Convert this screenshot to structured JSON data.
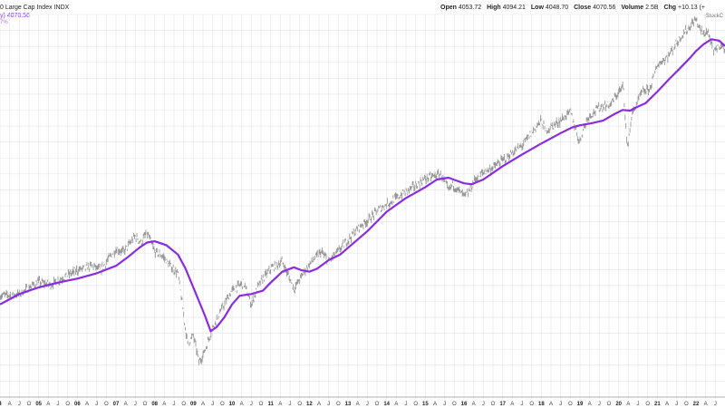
{
  "header": {
    "title": "0 Large Cap Index",
    "exchange": "INDX",
    "open_label": "Open",
    "open": "4053.72",
    "high_label": "High",
    "high": "4094.21",
    "low_label": "Low",
    "low": "4048.70",
    "close_label": "Close",
    "close": "4070.56",
    "volume_label": "Volume",
    "volume": "2.5B",
    "chg_label": "Chg",
    "chg": "+10.13 (+"
  },
  "ma_legend": {
    "line1": "y) 4070.56",
    "line2": "7%"
  },
  "brand": "StockC",
  "colors": {
    "price": "#8c8c8c",
    "ma": "#8a2be2",
    "grid": "#e3e3e3",
    "background": "#ffffff"
  },
  "chart_data": {
    "type": "line",
    "title": "",
    "xlabel": "",
    "ylabel": "",
    "grid": true,
    "x_axis_ticks": [
      "4",
      "A",
      "J",
      "O",
      "05",
      "A",
      "J",
      "O",
      "06",
      "A",
      "J",
      "O",
      "07",
      "A",
      "J",
      "O",
      "08",
      "A",
      "J",
      "O",
      "09",
      "A",
      "J",
      "O",
      "10",
      "A",
      "J",
      "O",
      "11",
      "A",
      "J",
      "O",
      "12",
      "A",
      "J",
      "O",
      "13",
      "A",
      "J",
      "O",
      "14",
      "A",
      "J",
      "O",
      "15",
      "A",
      "J",
      "O",
      "16",
      "A",
      "J",
      "O",
      "17",
      "A",
      "J",
      "O",
      "18",
      "A",
      "J",
      "O",
      "19",
      "A",
      "J",
      "O",
      "20",
      "A",
      "J",
      "O",
      "21",
      "A",
      "J",
      "O",
      "22",
      "A",
      "J"
    ],
    "x_range": [
      2004.0,
      2022.75
    ],
    "ylim": [
      650,
      4900
    ],
    "series": [
      {
        "role": "price",
        "x": [
          2004.0,
          2004.5,
          2005.0,
          2005.3,
          2005.7,
          2006.0,
          2006.4,
          2006.6,
          2007.0,
          2007.2,
          2007.5,
          2007.65,
          2007.8,
          2008.0,
          2008.2,
          2008.4,
          2008.6,
          2008.75,
          2008.85,
          2009.0,
          2009.15,
          2009.3,
          2009.5,
          2009.8,
          2010.0,
          2010.3,
          2010.5,
          2010.7,
          2011.0,
          2011.3,
          2011.6,
          2011.8,
          2012.0,
          2012.3,
          2012.5,
          2012.8,
          2013.0,
          2013.3,
          2013.5,
          2013.8,
          2014.0,
          2014.3,
          2014.6,
          2014.8,
          2015.0,
          2015.4,
          2015.6,
          2015.7,
          2016.0,
          2016.1,
          2016.3,
          2016.5,
          2016.8,
          2017.0,
          2017.5,
          2018.0,
          2018.1,
          2018.5,
          2018.75,
          2018.98,
          2019.2,
          2019.5,
          2019.8,
          2020.0,
          2020.12,
          2020.22,
          2020.35,
          2020.6,
          2020.8,
          2021.0,
          2021.3,
          2021.6,
          2021.8,
          2021.99,
          2022.1,
          2022.2,
          2022.3,
          2022.45,
          2022.6,
          2022.75
        ],
        "y": [
          1110,
          1120,
          1195,
          1175,
          1230,
          1270,
          1300,
          1270,
          1420,
          1400,
          1520,
          1470,
          1550,
          1400,
          1370,
          1300,
          1250,
          1000,
          860,
          900,
          780,
          830,
          940,
          1060,
          1140,
          1190,
          1060,
          1180,
          1280,
          1330,
          1150,
          1230,
          1310,
          1400,
          1330,
          1420,
          1490,
          1600,
          1650,
          1750,
          1800,
          1870,
          1950,
          2000,
          2060,
          2110,
          1930,
          2000,
          1880,
          1900,
          2060,
          2130,
          2200,
          2270,
          2450,
          2800,
          2650,
          2800,
          2930,
          2500,
          2850,
          3000,
          3050,
          3250,
          3350,
          2400,
          2900,
          3250,
          3300,
          3750,
          3950,
          4350,
          4550,
          4780,
          4550,
          4400,
          4500,
          4000,
          4200,
          4070
        ]
      },
      {
        "role": "moving-average",
        "x": [
          2004.0,
          2004.5,
          2005.0,
          2005.5,
          2006.0,
          2006.5,
          2007.0,
          2007.3,
          2007.6,
          2007.8,
          2008.0,
          2008.3,
          2008.6,
          2008.8,
          2009.0,
          2009.3,
          2009.45,
          2009.6,
          2009.8,
          2010.0,
          2010.2,
          2010.5,
          2010.8,
          2011.0,
          2011.3,
          2011.6,
          2011.8,
          2012.0,
          2012.2,
          2012.5,
          2012.8,
          2013.0,
          2013.5,
          2014.0,
          2014.5,
          2015.0,
          2015.3,
          2015.6,
          2015.8,
          2016.0,
          2016.2,
          2016.5,
          2017.0,
          2017.5,
          2018.0,
          2018.5,
          2018.8,
          2019.0,
          2019.3,
          2019.6,
          2019.9,
          2020.1,
          2020.3,
          2020.45,
          2020.7,
          2021.0,
          2021.3,
          2021.6,
          2021.85,
          2022.0,
          2022.2,
          2022.4,
          2022.6,
          2022.75
        ],
        "y": [
          1060,
          1120,
          1160,
          1190,
          1215,
          1250,
          1300,
          1360,
          1430,
          1470,
          1480,
          1450,
          1380,
          1280,
          1160,
          1000,
          920,
          940,
          990,
          1060,
          1110,
          1120,
          1140,
          1190,
          1260,
          1290,
          1270,
          1260,
          1280,
          1340,
          1380,
          1430,
          1560,
          1730,
          1860,
          1970,
          2050,
          2070,
          2040,
          2010,
          2000,
          2050,
          2200,
          2340,
          2480,
          2620,
          2700,
          2730,
          2760,
          2800,
          2900,
          2960,
          2950,
          3000,
          3070,
          3260,
          3480,
          3700,
          3900,
          4040,
          4190,
          4300,
          4270,
          4150
        ]
      }
    ]
  }
}
